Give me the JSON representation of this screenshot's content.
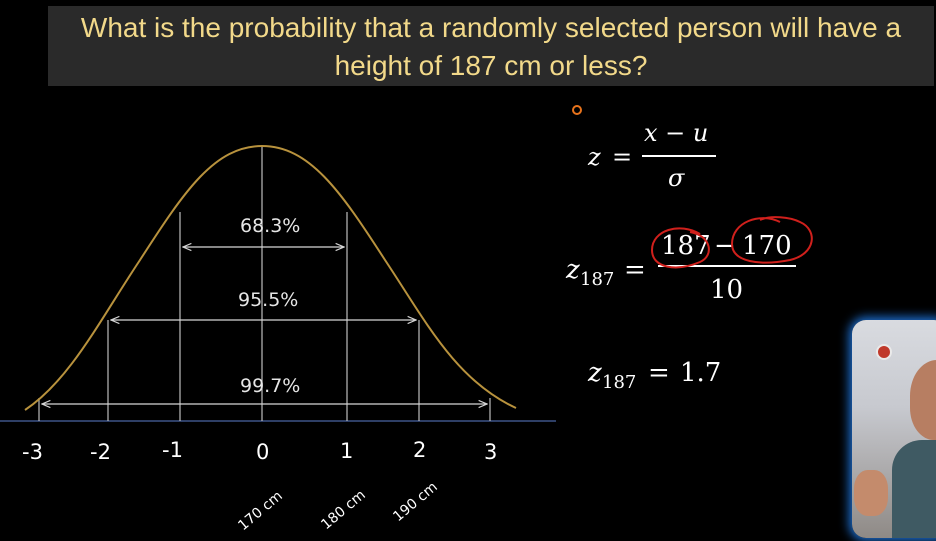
{
  "question": {
    "line1": "What is the probability that a randomly selected person will have a",
    "line2": "height of 187 cm or less?"
  },
  "curve": {
    "intervals": [
      {
        "label": "68.3%",
        "from": -1,
        "to": 1
      },
      {
        "label": "95.5%",
        "from": -2,
        "to": 2
      },
      {
        "label": "99.7%",
        "from": -3,
        "to": 3
      }
    ],
    "z_ticks": [
      "-3",
      "-2",
      "-1",
      "0",
      "1",
      "2",
      "3"
    ],
    "cm_labels": [
      "170 cm",
      "180 cm",
      "190 cm"
    ]
  },
  "formulas": {
    "general": {
      "lhs": "z",
      "eq": "=",
      "numerator": "x − u",
      "denominator": "σ"
    },
    "substituted": {
      "lhs": "z",
      "sub": "187",
      "eq": "=",
      "num_a": "187",
      "num_op": "−",
      "num_b": "170",
      "denominator": "10"
    },
    "result": {
      "lhs": "z",
      "sub": "187",
      "eq": "=",
      "value": "1.7"
    }
  },
  "colors": {
    "curve": "#b8923d",
    "axis": "#2e3f66",
    "banner_text": "#f2d98a",
    "annotation": "#d0201c",
    "pointer": "#e8731c"
  },
  "webcam": {
    "icon": "presenter-webcam"
  }
}
